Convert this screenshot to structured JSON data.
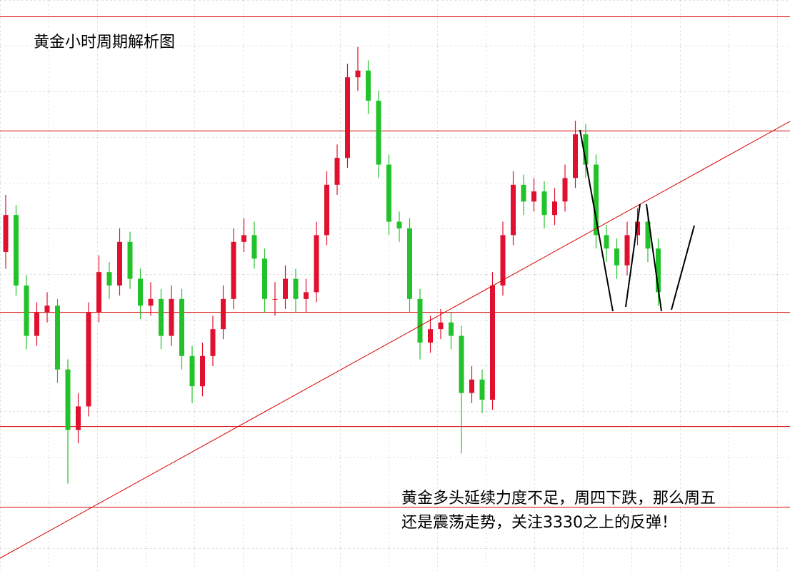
{
  "chart_data": {
    "type": "candlestick",
    "title": "黄金小时周期解析图",
    "annotation": [
      "黄金多头延续力度不足，周四下跌，那么周五",
      "还是震荡走势，关注3330之上的反弹！"
    ],
    "ylim": [
      3250,
      3420
    ],
    "up_color": "#e0102e",
    "down_color": "#22c32a",
    "levels": [
      3415,
      3381,
      3327,
      3293,
      3269
    ],
    "level_color": "#d80000",
    "grid": true,
    "open": [
      3345,
      3356,
      3335,
      3320,
      3327,
      3329,
      3310,
      3292,
      3299,
      3327,
      3339,
      3335,
      3348,
      3337,
      3329,
      3331,
      3320,
      3331,
      3314,
      3305,
      3314,
      3322,
      3331,
      3348,
      3350,
      3343,
      3331,
      3331,
      3337,
      3331,
      3333,
      3350,
      3365,
      3373,
      3397,
      3399,
      3390,
      3371,
      3354,
      3352,
      3331,
      3318,
      3322,
      3324,
      3320,
      3303,
      3307,
      3301,
      3335,
      3350,
      3365,
      3360,
      3363,
      3356,
      3360,
      3367,
      3380,
      3371,
      3350,
      3346,
      3341,
      3350,
      3354,
      3346
    ],
    "high": [
      3362,
      3359,
      3338,
      3330,
      3333,
      3331,
      3313,
      3303,
      3330,
      3344,
      3342,
      3352,
      3351,
      3340,
      3336,
      3334,
      3335,
      3334,
      3317,
      3318,
      3326,
      3335,
      3352,
      3355,
      3354,
      3346,
      3336,
      3341,
      3340,
      3337,
      3354,
      3369,
      3377,
      3401,
      3406,
      3402,
      3393,
      3374,
      3357,
      3355,
      3334,
      3326,
      3328,
      3327,
      3323,
      3311,
      3310,
      3339,
      3354,
      3369,
      3368,
      3367,
      3366,
      3364,
      3371,
      3384,
      3383,
      3374,
      3353,
      3349,
      3354,
      3358,
      3357,
      3349
    ],
    "low": [
      3340,
      3332,
      3316,
      3317,
      3324,
      3306,
      3276,
      3288,
      3296,
      3324,
      3331,
      3332,
      3334,
      3325,
      3326,
      3316,
      3317,
      3310,
      3300,
      3302,
      3311,
      3319,
      3328,
      3345,
      3340,
      3327,
      3326,
      3328,
      3327,
      3327,
      3330,
      3347,
      3362,
      3370,
      3393,
      3386,
      3367,
      3350,
      3348,
      3327,
      3313,
      3315,
      3319,
      3316,
      3285,
      3300,
      3297,
      3298,
      3332,
      3347,
      3356,
      3357,
      3352,
      3353,
      3357,
      3364,
      3367,
      3346,
      3342,
      3337,
      3338,
      3347,
      3342,
      3329
    ],
    "close": [
      3356,
      3335,
      3320,
      3327,
      3329,
      3310,
      3292,
      3299,
      3327,
      3339,
      3335,
      3348,
      3337,
      3329,
      3331,
      3320,
      3331,
      3314,
      3305,
      3314,
      3322,
      3331,
      3348,
      3350,
      3343,
      3331,
      3331,
      3337,
      3331,
      3333,
      3350,
      3365,
      3373,
      3397,
      3399,
      3390,
      3371,
      3354,
      3352,
      3331,
      3318,
      3322,
      3324,
      3320,
      3303,
      3307,
      3301,
      3335,
      3350,
      3365,
      3360,
      3363,
      3356,
      3360,
      3367,
      3380,
      3371,
      3350,
      3346,
      3341,
      3350,
      3354,
      3346,
      3333
    ]
  }
}
